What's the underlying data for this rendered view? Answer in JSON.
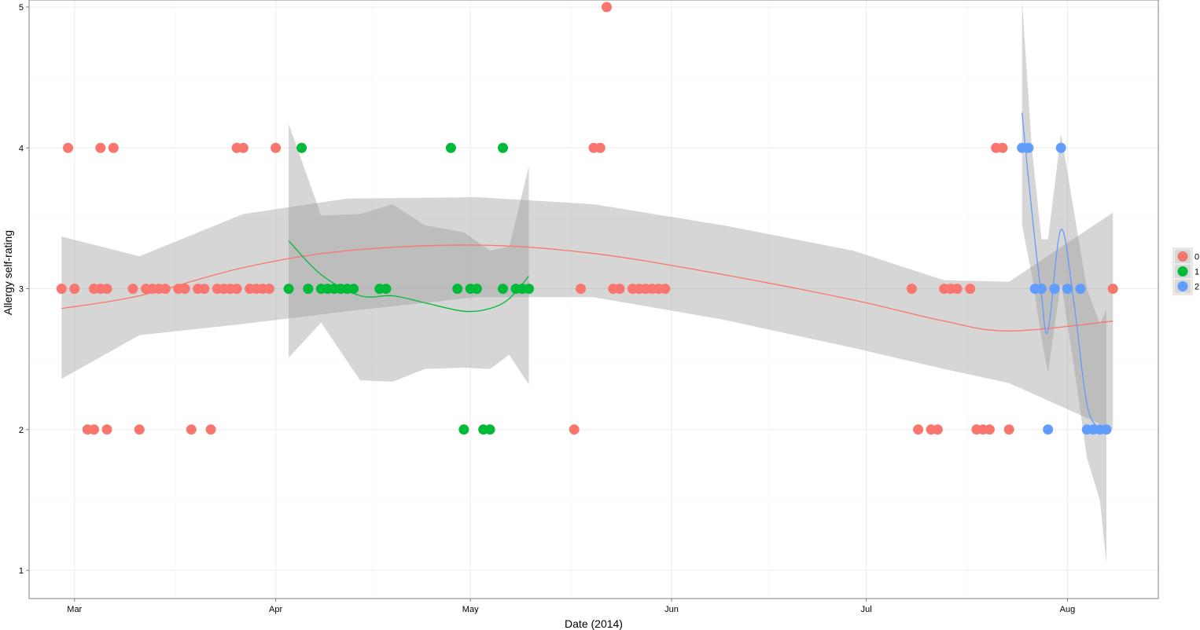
{
  "chart_data": {
    "type": "scatter",
    "title": "",
    "xlabel": "Date (2014)",
    "ylabel": "Allergy self-rating",
    "x_type": "date",
    "xlim": [
      "2014-02-22",
      "2014-08-15"
    ],
    "ylim": [
      0.8,
      5.05
    ],
    "x_ticks": [
      {
        "date": "2014-03-01",
        "label": "Mar"
      },
      {
        "date": "2014-04-01",
        "label": "Apr"
      },
      {
        "date": "2014-05-01",
        "label": "May"
      },
      {
        "date": "2014-06-01",
        "label": "Jun"
      },
      {
        "date": "2014-07-01",
        "label": "Jul"
      },
      {
        "date": "2014-08-01",
        "label": "Aug"
      }
    ],
    "y_ticks": [
      1,
      2,
      3,
      4,
      5
    ],
    "grid": true,
    "legend": {
      "position": "right",
      "entries": [
        {
          "label": "0",
          "color": "#F8766D"
        },
        {
          "label": "1",
          "color": "#00BA38"
        },
        {
          "label": "2",
          "color": "#619CFF"
        }
      ]
    },
    "series": [
      {
        "name": "0",
        "color": "#F8766D",
        "points": [
          [
            "2014-02-27",
            3
          ],
          [
            "2014-02-28",
            4
          ],
          [
            "2014-03-01",
            3
          ],
          [
            "2014-03-03",
            2
          ],
          [
            "2014-03-04",
            2
          ],
          [
            "2014-03-04",
            3
          ],
          [
            "2014-03-05",
            3
          ],
          [
            "2014-03-05",
            4
          ],
          [
            "2014-03-06",
            3
          ],
          [
            "2014-03-06",
            2
          ],
          [
            "2014-03-07",
            4
          ],
          [
            "2014-03-10",
            3
          ],
          [
            "2014-03-11",
            2
          ],
          [
            "2014-03-12",
            3
          ],
          [
            "2014-03-13",
            3
          ],
          [
            "2014-03-14",
            3
          ],
          [
            "2014-03-15",
            3
          ],
          [
            "2014-03-17",
            3
          ],
          [
            "2014-03-18",
            3
          ],
          [
            "2014-03-19",
            2
          ],
          [
            "2014-03-20",
            3
          ],
          [
            "2014-03-21",
            3
          ],
          [
            "2014-03-22",
            2
          ],
          [
            "2014-03-23",
            3
          ],
          [
            "2014-03-24",
            3
          ],
          [
            "2014-03-25",
            3
          ],
          [
            "2014-03-26",
            3
          ],
          [
            "2014-03-26",
            4
          ],
          [
            "2014-03-27",
            4
          ],
          [
            "2014-03-28",
            3
          ],
          [
            "2014-03-29",
            3
          ],
          [
            "2014-03-30",
            3
          ],
          [
            "2014-03-31",
            3
          ],
          [
            "2014-04-01",
            4
          ],
          [
            "2014-05-17",
            2
          ],
          [
            "2014-05-18",
            3
          ],
          [
            "2014-05-20",
            4
          ],
          [
            "2014-05-21",
            4
          ],
          [
            "2014-05-22",
            5
          ],
          [
            "2014-05-23",
            3
          ],
          [
            "2014-05-24",
            3
          ],
          [
            "2014-05-26",
            3
          ],
          [
            "2014-05-27",
            3
          ],
          [
            "2014-05-28",
            3
          ],
          [
            "2014-05-29",
            3
          ],
          [
            "2014-05-30",
            3
          ],
          [
            "2014-05-31",
            3
          ],
          [
            "2014-07-08",
            3
          ],
          [
            "2014-07-09",
            2
          ],
          [
            "2014-07-11",
            2
          ],
          [
            "2014-07-12",
            2
          ],
          [
            "2014-07-13",
            3
          ],
          [
            "2014-07-14",
            3
          ],
          [
            "2014-07-15",
            3
          ],
          [
            "2014-07-17",
            3
          ],
          [
            "2014-07-18",
            2
          ],
          [
            "2014-07-19",
            2
          ],
          [
            "2014-07-20",
            2
          ],
          [
            "2014-07-21",
            4
          ],
          [
            "2014-07-22",
            4
          ],
          [
            "2014-07-23",
            2
          ],
          [
            "2014-08-08",
            3
          ]
        ]
      },
      {
        "name": "1",
        "color": "#00BA38",
        "points": [
          [
            "2014-04-03",
            3
          ],
          [
            "2014-04-05",
            4
          ],
          [
            "2014-04-06",
            3
          ],
          [
            "2014-04-08",
            3
          ],
          [
            "2014-04-09",
            3
          ],
          [
            "2014-04-10",
            3
          ],
          [
            "2014-04-11",
            3
          ],
          [
            "2014-04-12",
            3
          ],
          [
            "2014-04-13",
            3
          ],
          [
            "2014-04-17",
            3
          ],
          [
            "2014-04-18",
            3
          ],
          [
            "2014-04-28",
            4
          ],
          [
            "2014-04-29",
            3
          ],
          [
            "2014-04-30",
            2
          ],
          [
            "2014-05-01",
            3
          ],
          [
            "2014-05-02",
            3
          ],
          [
            "2014-05-03",
            2
          ],
          [
            "2014-05-04",
            2
          ],
          [
            "2014-05-06",
            3
          ],
          [
            "2014-05-06",
            4
          ],
          [
            "2014-05-08",
            3
          ],
          [
            "2014-05-09",
            3
          ],
          [
            "2014-05-10",
            3
          ]
        ]
      },
      {
        "name": "2",
        "color": "#619CFF",
        "points": [
          [
            "2014-07-25",
            4
          ],
          [
            "2014-07-26",
            4
          ],
          [
            "2014-07-27",
            3
          ],
          [
            "2014-07-28",
            3
          ],
          [
            "2014-07-29",
            2
          ],
          [
            "2014-07-30",
            3
          ],
          [
            "2014-07-31",
            4
          ],
          [
            "2014-08-01",
            3
          ],
          [
            "2014-08-03",
            3
          ],
          [
            "2014-08-04",
            2
          ],
          [
            "2014-08-05",
            2
          ],
          [
            "2014-08-06",
            2
          ],
          [
            "2014-08-07",
            2
          ]
        ]
      }
    ],
    "smooths": [
      {
        "series": "0",
        "color": "#F8766D",
        "points": [
          [
            "2014-02-27",
            2.86,
            2.36,
            3.37
          ],
          [
            "2014-03-11",
            2.95,
            2.67,
            3.23
          ],
          [
            "2014-03-27",
            3.15,
            2.75,
            3.53
          ],
          [
            "2014-04-12",
            3.27,
            2.84,
            3.64
          ],
          [
            "2014-05-02",
            3.31,
            2.94,
            3.65
          ],
          [
            "2014-05-20",
            3.25,
            2.94,
            3.6
          ],
          [
            "2014-06-09",
            3.1,
            2.78,
            3.45
          ],
          [
            "2014-06-29",
            2.92,
            2.58,
            3.27
          ],
          [
            "2014-07-13",
            2.77,
            2.43,
            3.06
          ],
          [
            "2014-07-23",
            2.7,
            2.33,
            3.05
          ],
          [
            "2014-08-08",
            2.77,
            2.0,
            3.54
          ]
        ]
      },
      {
        "series": "1",
        "color": "#00BA38",
        "points": [
          [
            "2014-04-03",
            3.34,
            2.51,
            4.17
          ],
          [
            "2014-04-08",
            3.1,
            2.76,
            3.52
          ],
          [
            "2014-04-14",
            2.95,
            2.35,
            3.53
          ],
          [
            "2014-04-19",
            2.95,
            2.34,
            3.6
          ],
          [
            "2014-04-24",
            2.9,
            2.43,
            3.45
          ],
          [
            "2014-04-30",
            2.84,
            2.44,
            3.4
          ],
          [
            "2014-05-04",
            2.86,
            2.43,
            3.27
          ],
          [
            "2014-05-07",
            2.93,
            2.53,
            3.3
          ],
          [
            "2014-05-10",
            3.09,
            2.32,
            3.87
          ]
        ]
      },
      {
        "series": "2",
        "color": "#619CFF",
        "points": [
          [
            "2014-07-25",
            4.25,
            3.45,
            5.05
          ],
          [
            "2014-07-26.5",
            3.55,
            3.1,
            4.0
          ],
          [
            "2014-07-28",
            2.95,
            2.65,
            3.35
          ],
          [
            "2014-07-29",
            2.7,
            2.4,
            3.35
          ],
          [
            "2014-07-31",
            3.42,
            3.05,
            4.1
          ],
          [
            "2014-08-02",
            2.9,
            2.45,
            3.55
          ],
          [
            "2014-08-04",
            2.18,
            1.8,
            3.0
          ],
          [
            "2014-08-06",
            2.0,
            1.5,
            2.75
          ],
          [
            "2014-08-07",
            1.99,
            1.05,
            2.85
          ]
        ]
      }
    ]
  }
}
